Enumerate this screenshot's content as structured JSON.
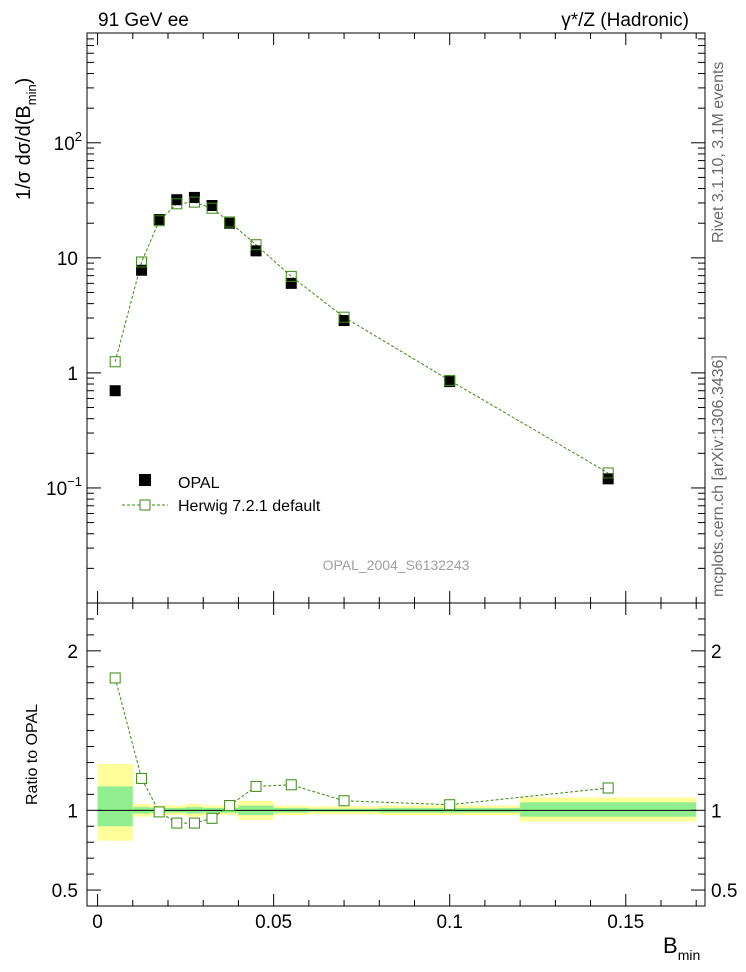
{
  "header": {
    "left": "91 GeV ee",
    "right": "γ*/Z (Hadronic)"
  },
  "side_labels": {
    "rivet": "Rivet 3.1.10,  3.1M events",
    "mcplots": "mcplots.cern.ch [arXiv:1306.3436]"
  },
  "analysis_id": "OPAL_2004_S6132243",
  "legend": {
    "data_label": "OPAL",
    "mc_label": "Herwig 7.2.1 default"
  },
  "colors": {
    "data": "#000000",
    "mc": "#3a8a10",
    "band_inner": "#90ee90",
    "band_outer": "#ffff99",
    "side_text": "#6a6a6a"
  },
  "chart_data": [
    {
      "type": "scatter",
      "role": "main",
      "ylabel": "1/σ dσ/d(B_min)",
      "yscale": "log",
      "ylim": [
        0.01,
        900
      ],
      "xlim": [
        -0.003,
        0.1725
      ],
      "yticks": [
        {
          "value": 0.1,
          "label": "10",
          "sup": "−1"
        },
        {
          "value": 1,
          "label": "1",
          "sup": ""
        },
        {
          "value": 10,
          "label": "10",
          "sup": ""
        },
        {
          "value": 100,
          "label": "10",
          "sup": "2"
        }
      ],
      "series": [
        {
          "name": "OPAL",
          "style": "filled-square",
          "x": [
            0.005,
            0.0125,
            0.0175,
            0.0225,
            0.0275,
            0.0325,
            0.0375,
            0.045,
            0.055,
            0.07,
            0.1,
            0.145
          ],
          "values": [
            0.7,
            7.8,
            21.5,
            32.0,
            33.5,
            28.5,
            20.0,
            11.5,
            6.0,
            2.85,
            0.84,
            0.12
          ]
        },
        {
          "name": "Herwig 7.2.1 default",
          "style": "open-square-dashed",
          "x": [
            0.005,
            0.0125,
            0.0175,
            0.0225,
            0.0275,
            0.0325,
            0.0375,
            0.045,
            0.055,
            0.07,
            0.1,
            0.145
          ],
          "values": [
            1.25,
            9.2,
            21.0,
            29.5,
            30.5,
            27.0,
            20.5,
            13.0,
            6.9,
            3.05,
            0.86,
            0.135
          ]
        }
      ]
    },
    {
      "type": "scatter",
      "role": "ratio",
      "ylabel": "Ratio to OPAL",
      "xlabel": "B_min",
      "ylim": [
        0.4,
        2.3
      ],
      "xlim": [
        -0.003,
        0.1725
      ],
      "xticks": [
        {
          "value": 0,
          "label": "0"
        },
        {
          "value": 0.05,
          "label": "0.05"
        },
        {
          "value": 0.1,
          "label": "0.1"
        },
        {
          "value": 0.15,
          "label": "0.15"
        }
      ],
      "yticks": [
        {
          "value": 0.5,
          "label": "0.5"
        },
        {
          "value": 1,
          "label": "1"
        },
        {
          "value": 2,
          "label": "2"
        }
      ],
      "bands": [
        {
          "x0": 0.0,
          "x1": 0.01,
          "outer": [
            0.81,
            1.29
          ],
          "inner": [
            0.9,
            1.15
          ]
        },
        {
          "x0": 0.01,
          "x1": 0.015,
          "outer": [
            0.96,
            1.04
          ],
          "inner": [
            0.98,
            1.02
          ]
        },
        {
          "x0": 0.015,
          "x1": 0.025,
          "outer": [
            0.97,
            1.03
          ],
          "inner": [
            0.985,
            1.015
          ]
        },
        {
          "x0": 0.025,
          "x1": 0.03,
          "outer": [
            0.96,
            1.04
          ],
          "inner": [
            0.98,
            1.02
          ]
        },
        {
          "x0": 0.03,
          "x1": 0.04,
          "outer": [
            0.97,
            1.03
          ],
          "inner": [
            0.985,
            1.015
          ]
        },
        {
          "x0": 0.04,
          "x1": 0.05,
          "outer": [
            0.94,
            1.06
          ],
          "inner": [
            0.97,
            1.03
          ]
        },
        {
          "x0": 0.05,
          "x1": 0.06,
          "outer": [
            0.97,
            1.03
          ],
          "inner": [
            0.985,
            1.015
          ]
        },
        {
          "x0": 0.06,
          "x1": 0.08,
          "outer": [
            0.975,
            1.025
          ],
          "inner": [
            0.99,
            1.01
          ]
        },
        {
          "x0": 0.08,
          "x1": 0.12,
          "outer": [
            0.97,
            1.03
          ],
          "inner": [
            0.985,
            1.015
          ]
        },
        {
          "x0": 0.12,
          "x1": 0.17,
          "outer": [
            0.93,
            1.08
          ],
          "inner": [
            0.96,
            1.05
          ]
        }
      ],
      "series": [
        {
          "name": "Herwig 7.2.1 default / OPAL",
          "x": [
            0.005,
            0.0125,
            0.0175,
            0.0225,
            0.0275,
            0.0325,
            0.0375,
            0.045,
            0.055,
            0.07,
            0.1,
            0.145
          ],
          "values": [
            1.83,
            1.2,
            0.99,
            0.92,
            0.92,
            0.95,
            1.03,
            1.15,
            1.16,
            1.06,
            1.035,
            1.14
          ]
        }
      ]
    }
  ]
}
